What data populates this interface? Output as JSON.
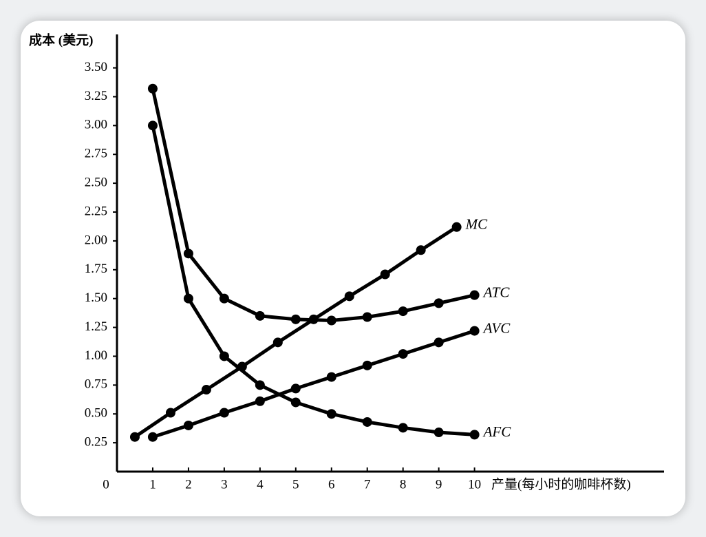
{
  "chart_data": {
    "type": "line",
    "y_label": "成本 (美元)",
    "x_label": "产量(每小时的咖啡杯数)",
    "xlim": [
      0,
      15.3
    ],
    "ylim": [
      0,
      3.79
    ],
    "xticks": [
      0,
      1,
      2,
      3,
      4,
      5,
      6,
      7,
      8,
      9,
      10
    ],
    "yticks": [
      {
        "value": 0.25,
        "label": "0.25"
      },
      {
        "value": 0.5,
        "label": "0.50"
      },
      {
        "value": 0.75,
        "label": "0.75"
      },
      {
        "value": 1,
        "label": "1.00"
      },
      {
        "value": 1.25,
        "label": "1.25"
      },
      {
        "value": 1.5,
        "label": "1.50"
      },
      {
        "value": 1.75,
        "label": "1.75"
      },
      {
        "value": 2,
        "label": "2.00"
      },
      {
        "value": 2.25,
        "label": "2.25"
      },
      {
        "value": 2.5,
        "label": "2.50"
      },
      {
        "value": 2.75,
        "label": "2.75"
      },
      {
        "value": 3,
        "label": "3.00"
      },
      {
        "value": 3.25,
        "label": "3.25"
      },
      {
        "value": 3.5,
        "label": "3.50"
      }
    ],
    "series": [
      {
        "name": "MC",
        "color": "#000000",
        "x": [
          0.5,
          1.5,
          2.5,
          3.5,
          4.5,
          5.5,
          6.5,
          7.5,
          8.5,
          9.5
        ],
        "values": [
          0.3,
          0.51,
          0.71,
          0.91,
          1.12,
          1.32,
          1.52,
          1.71,
          1.92,
          2.12
        ]
      },
      {
        "name": "ATC",
        "color": "#000000",
        "x": [
          1,
          2,
          3,
          4,
          5,
          6,
          7,
          8,
          9,
          10
        ],
        "values": [
          3.32,
          1.89,
          1.5,
          1.35,
          1.32,
          1.31,
          1.34,
          1.39,
          1.46,
          1.53
        ]
      },
      {
        "name": "AVC",
        "color": "#000000",
        "x": [
          1,
          2,
          3,
          4,
          5,
          6,
          7,
          8,
          9,
          10
        ],
        "values": [
          0.3,
          0.4,
          0.51,
          0.61,
          0.72,
          0.82,
          0.92,
          1.02,
          1.12,
          1.22
        ]
      },
      {
        "name": "AFC",
        "color": "#000000",
        "x": [
          1,
          2,
          3,
          4,
          5,
          6,
          7,
          8,
          9,
          10
        ],
        "values": [
          3.0,
          1.5,
          1.0,
          0.75,
          0.6,
          0.5,
          0.43,
          0.38,
          0.34,
          0.32
        ]
      }
    ]
  }
}
